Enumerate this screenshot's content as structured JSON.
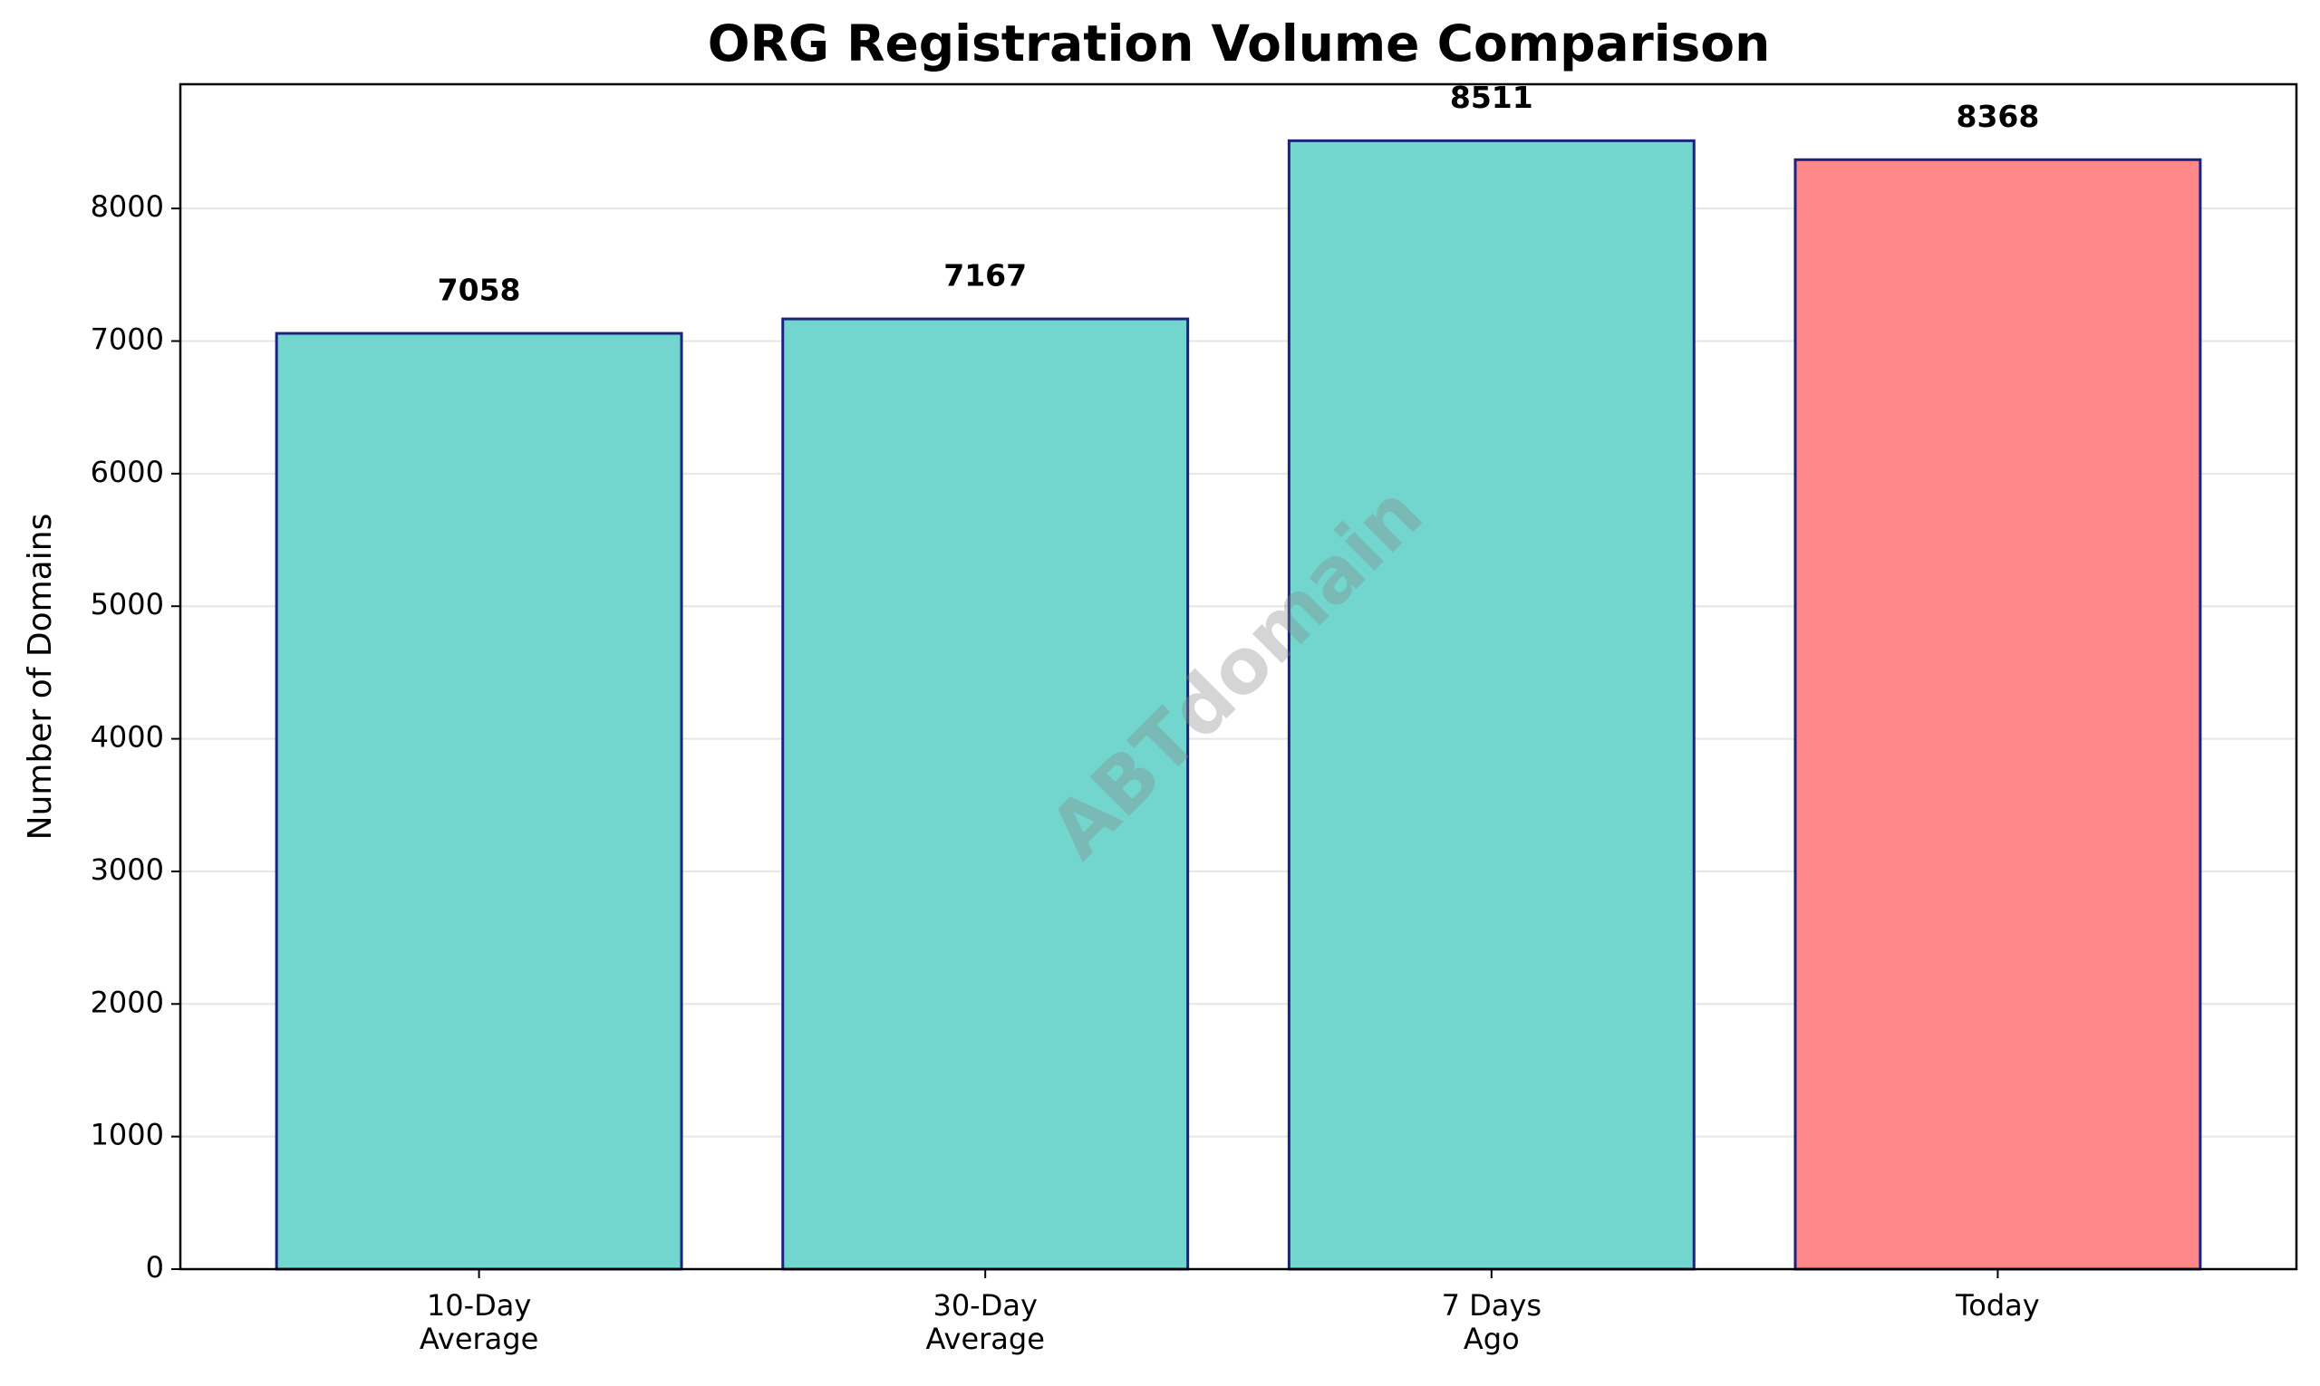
{
  "chart_data": {
    "type": "bar",
    "title": "ORG Registration Volume Comparison",
    "ylabel": "Number of Domains",
    "watermark": "ABTdomain",
    "categories": [
      "10-Day\nAverage",
      "30-Day\nAverage",
      "7 Days\nAgo",
      "Today"
    ],
    "values": [
      7058,
      7167,
      8511,
      8368
    ],
    "colors": [
      "#72d6cf",
      "#72d6cf",
      "#72d6cf",
      "#ff8787"
    ],
    "edgecolor": "#1a237e",
    "ylim": [
      0,
      8937
    ],
    "yticks": [
      0,
      1000,
      2000,
      3000,
      4000,
      5000,
      6000,
      7000,
      8000
    ],
    "grid": true
  }
}
